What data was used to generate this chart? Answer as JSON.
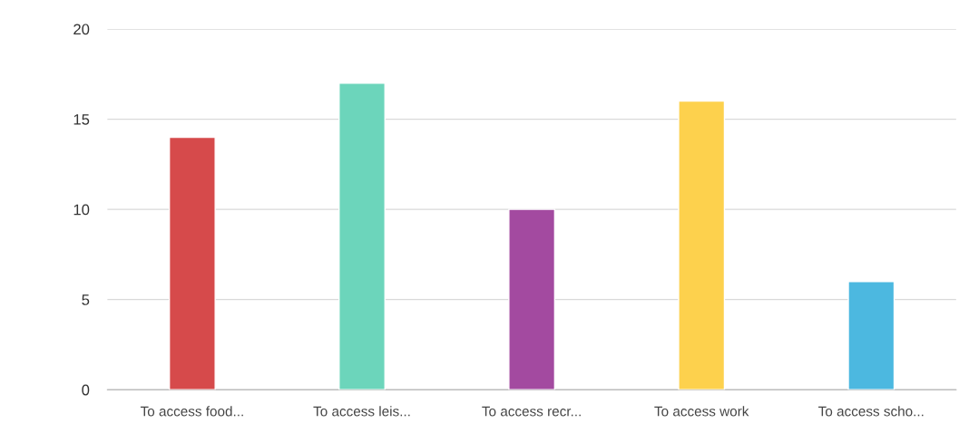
{
  "chart_data": {
    "type": "bar",
    "categories": [
      "To access food...",
      "To access leis...",
      "To access recr...",
      "To access work",
      "To access scho..."
    ],
    "values": [
      14,
      17,
      10,
      16,
      6
    ],
    "colors": [
      "#d64a4b",
      "#6cd5bb",
      "#a34aa0",
      "#fdd14d",
      "#4cb8e0"
    ],
    "ylim": [
      0,
      20
    ],
    "yticks": [
      0,
      5,
      10,
      15,
      20
    ],
    "grid": "y"
  }
}
